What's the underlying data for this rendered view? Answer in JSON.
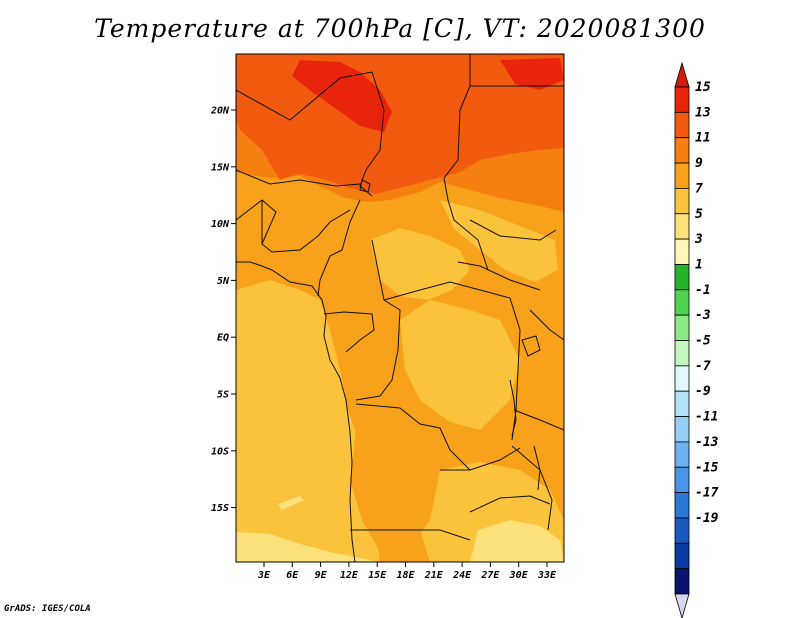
{
  "title": "Temperature at 700hPa [C], VT: 2020081300",
  "credit": "GrADS: IGES/COLA",
  "axes": {
    "lon_ticks": [
      "3E",
      "6E",
      "9E",
      "12E",
      "15E",
      "18E",
      "21E",
      "24E",
      "27E",
      "30E",
      "33E"
    ],
    "lat_ticks": [
      "20N",
      "15N",
      "10N",
      "5N",
      "EQ",
      "5S",
      "10S",
      "15S"
    ]
  },
  "colorbar": {
    "labels": [
      "15",
      "13",
      "11",
      "9",
      "7",
      "5",
      "3",
      "1",
      "-1",
      "-3",
      "-5",
      "-7",
      "-9",
      "-11",
      "-13",
      "-15",
      "-17",
      "-19"
    ],
    "colors": [
      "#e8250c",
      "#f25a0f",
      "#f6800f",
      "#f8a11a",
      "#fbc33c",
      "#fde27b",
      "#fdf6b4",
      "#27b22b",
      "#4fd24f",
      "#8aea86",
      "#c4f7bd",
      "#e1f7fb",
      "#b4e2fa",
      "#94cff6",
      "#6cb2f0",
      "#4a95ea",
      "#2c76d6",
      "#1a59c0",
      "#0c3aa3",
      "#0b1270"
    ],
    "over_color": "#d21b0a",
    "under_color": "#d6d8f2"
  },
  "field_colors": {
    "c15": "#e8250c",
    "c13": "#f25a0f",
    "c11": "#f6800f",
    "c9": "#f8a11a",
    "c7": "#fbc33c",
    "c5": "#fde27b"
  }
}
